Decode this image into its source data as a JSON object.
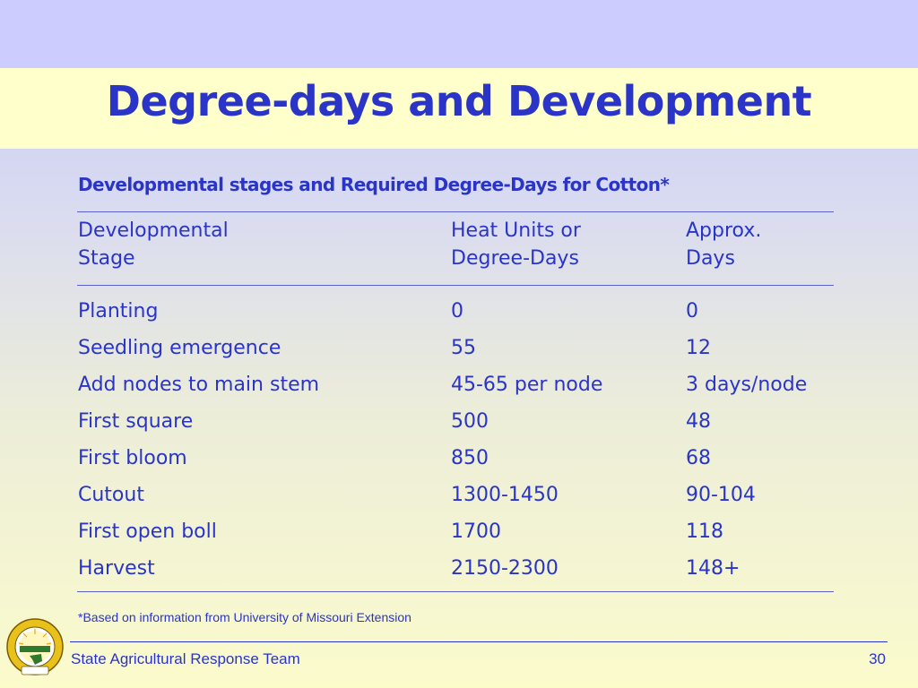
{
  "slide": {
    "title": "Degree-days and Development",
    "subtitle": "Developmental stages and Required Degree-Days for Cotton*",
    "footnote": "*Based on information from University of Missouri Extension"
  },
  "table": {
    "headers": [
      {
        "line1": "Developmental",
        "line2": "Stage"
      },
      {
        "line1": "Heat Units or",
        "line2": "Degree-Days"
      },
      {
        "line1": "Approx.",
        "line2": "Days"
      }
    ],
    "rows": [
      [
        "Planting",
        "0",
        "0"
      ],
      [
        "Seedling emergence",
        "55",
        "12"
      ],
      [
        "Add nodes to main stem",
        "45-65 per node",
        "3 days/node"
      ],
      [
        "First square",
        "500",
        "48"
      ],
      [
        "First bloom",
        "850",
        "68"
      ],
      [
        "Cutout",
        "1300-1450",
        "90-104"
      ],
      [
        "First open boll",
        "1700",
        "118"
      ],
      [
        "Harvest",
        "2150-2300",
        "148+"
      ]
    ]
  },
  "footer": {
    "organization": "State Agricultural Response Team",
    "page_number": "30",
    "logo": {
      "name": "sart-florida-seal",
      "ring_text": "STATE AGRICULTURAL RESPONSE TEAM",
      "center_text": "S.A.R.T.",
      "bottom_text": "FLORIDA"
    }
  },
  "colors": {
    "text": "#2a35c8",
    "top_band": "#ccccff",
    "title_band": "#ffffcc",
    "seal_gold": "#e8c21a",
    "seal_green": "#2f7a2f"
  }
}
